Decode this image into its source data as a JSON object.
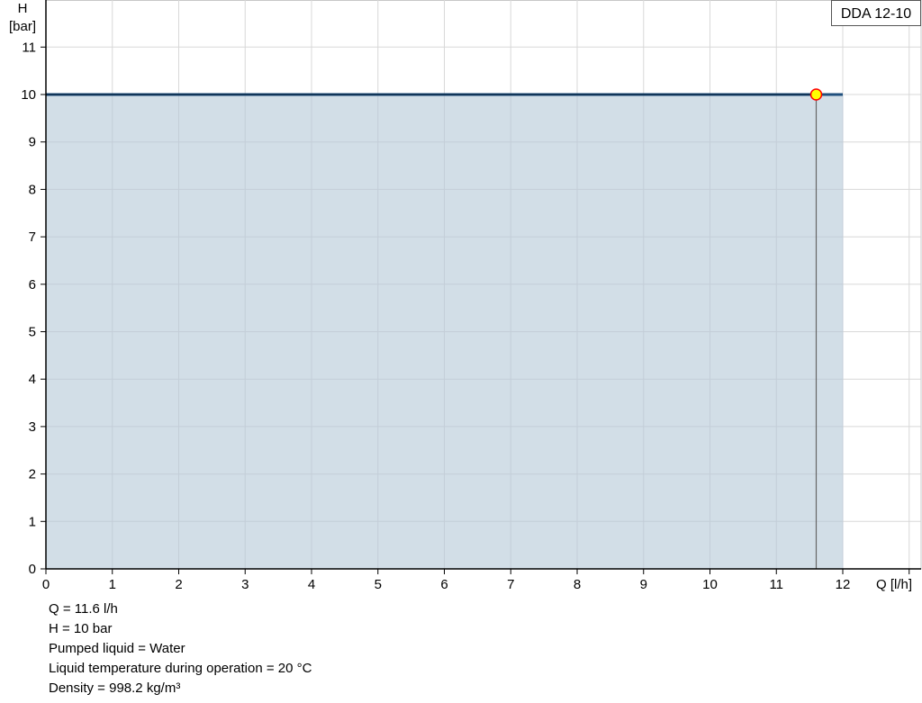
{
  "chart_data": {
    "type": "area",
    "title": "DDA 12-10",
    "xlabel": "Q [l/h]",
    "ylabel_line1": "H",
    "ylabel_line2": "[bar]",
    "xlim": [
      0,
      13
    ],
    "ylim": [
      0,
      12
    ],
    "x_ticks": [
      "0",
      "1",
      "2",
      "3",
      "4",
      "5",
      "6",
      "7",
      "8",
      "9",
      "10",
      "11",
      "12"
    ],
    "y_ticks": [
      "0",
      "1",
      "2",
      "3",
      "4",
      "5",
      "6",
      "7",
      "8",
      "9",
      "10",
      "11"
    ],
    "grid": true,
    "series": [
      {
        "x": [
          0,
          12
        ],
        "y": [
          10,
          10
        ],
        "fill_to_zero": true
      }
    ],
    "operating_point": {
      "x": 11.6,
      "y": 10
    },
    "colors": {
      "fill": "#d0dce6",
      "curve": "#1f4f7d",
      "curve_left": "#0d2d4d",
      "point_fill": "#ffff00",
      "point_stroke": "#ff0000",
      "grid": "#d8d8d8"
    }
  },
  "info": [
    "Q = 11.6 l/h",
    "H = 10 bar",
    "Pumped liquid = Water",
    "Liquid temperature during operation = 20 °C",
    "Density = 998.2 kg/m³"
  ]
}
